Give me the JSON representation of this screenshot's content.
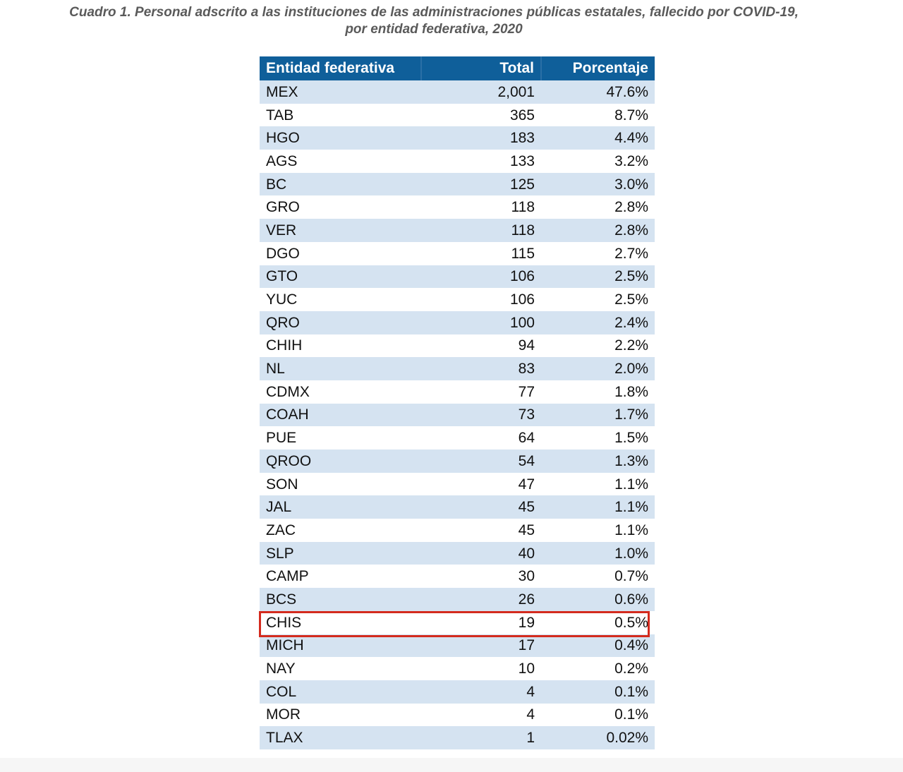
{
  "title": {
    "line1": "Cuadro 1. Personal adscrito a las instituciones de las administraciones públicas estatales, fallecido por COVID-19,",
    "line2": "por entidad federativa, 2020"
  },
  "table": {
    "headers": [
      "Entidad federativa",
      "Total",
      "Porcentaje"
    ],
    "rows": [
      [
        "MEX",
        "2,001",
        "47.6%"
      ],
      [
        "TAB",
        "365",
        "8.7%"
      ],
      [
        "HGO",
        "183",
        "4.4%"
      ],
      [
        "AGS",
        "133",
        "3.2%"
      ],
      [
        "BC",
        "125",
        "3.0%"
      ],
      [
        "GRO",
        "118",
        "2.8%"
      ],
      [
        "VER",
        "118",
        "2.8%"
      ],
      [
        "DGO",
        "115",
        "2.7%"
      ],
      [
        "GTO",
        "106",
        "2.5%"
      ],
      [
        "YUC",
        "106",
        "2.5%"
      ],
      [
        "QRO",
        "100",
        "2.4%"
      ],
      [
        "CHIH",
        "94",
        "2.2%"
      ],
      [
        "NL",
        "83",
        "2.0%"
      ],
      [
        "CDMX",
        "77",
        "1.8%"
      ],
      [
        "COAH",
        "73",
        "1.7%"
      ],
      [
        "PUE",
        "64",
        "1.5%"
      ],
      [
        "QROO",
        "54",
        "1.3%"
      ],
      [
        "SON",
        "47",
        "1.1%"
      ],
      [
        "JAL",
        "45",
        "1.1%"
      ],
      [
        "ZAC",
        "45",
        "1.1%"
      ],
      [
        "SLP",
        "40",
        "1.0%"
      ],
      [
        "CAMP",
        "30",
        "0.7%"
      ],
      [
        "BCS",
        "26",
        "0.6%"
      ],
      [
        "CHIS",
        "19",
        "0.5%"
      ],
      [
        "MICH",
        "17",
        "0.4%"
      ],
      [
        "NAY",
        "10",
        "0.2%"
      ],
      [
        "COL",
        "4",
        "0.1%"
      ],
      [
        "MOR",
        "4",
        "0.1%"
      ],
      [
        "TLAX",
        "1",
        "0.02%"
      ]
    ],
    "highlighted_row": "CHIS"
  },
  "colors": {
    "header_bg": "#0f5f9a",
    "band_bg": "#d5e3f1",
    "highlight_border": "#d42b1e",
    "title_text": "#5a5a5a"
  }
}
